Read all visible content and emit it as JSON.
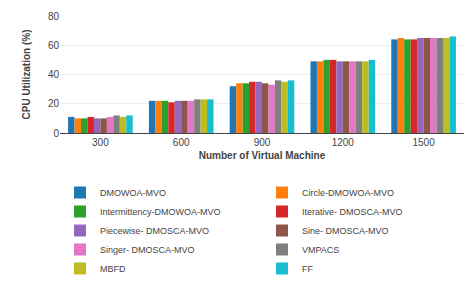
{
  "chart_data": {
    "type": "bar",
    "xlabel": "Number of Virtual Machine",
    "ylabel": "CPU Utilization (%)",
    "categories": [
      300,
      600,
      900,
      1200,
      1500
    ],
    "series": [
      {
        "name": "DMOWOA-MVO",
        "values": [
          11,
          22,
          32,
          49,
          64
        ]
      },
      {
        "name": "Circle-DMOWOA-MVO",
        "values": [
          10,
          22,
          34,
          49,
          65
        ]
      },
      {
        "name": "Intermittency-DMOWOA-MVO",
        "values": [
          10,
          22,
          34,
          50,
          64
        ]
      },
      {
        "name": "Iterative- DMOSCA-MVO",
        "values": [
          11,
          21,
          35,
          50,
          64
        ]
      },
      {
        "name": "Piecewise- DMOSCA-MVO",
        "values": [
          10,
          22,
          35,
          49,
          65
        ]
      },
      {
        "name": "Sine- DMOSCA-MVO",
        "values": [
          10,
          22,
          34,
          49,
          65
        ]
      },
      {
        "name": "Singer- DMOSCA-MVO",
        "values": [
          11,
          22,
          33,
          49,
          65
        ]
      },
      {
        "name": "VMPACS",
        "values": [
          12,
          23,
          36,
          49,
          65
        ]
      },
      {
        "name": "MBFD",
        "values": [
          11,
          23,
          35,
          49,
          65
        ]
      },
      {
        "name": "FF",
        "values": [
          12,
          23,
          36,
          50,
          66
        ]
      }
    ],
    "ylim": [
      0,
      80
    ],
    "yticks": [
      0,
      20,
      40,
      60,
      80
    ],
    "grid": true,
    "legend": "bottom"
  }
}
